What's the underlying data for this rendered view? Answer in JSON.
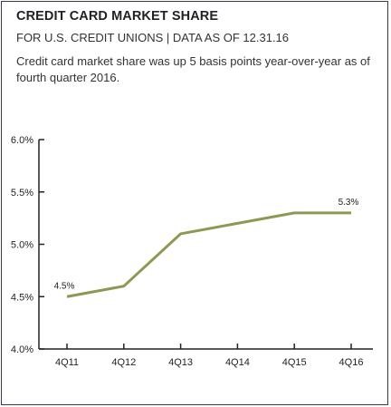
{
  "header": {
    "title": "CREDIT CARD MARKET SHARE",
    "subtitle": "FOR U.S. CREDIT UNIONS | DATA AS OF 12.31.16",
    "description": "Credit card market share was up 5 basis points year-over-year as of fourth quarter 2016."
  },
  "colors": {
    "line": "#8a9a52",
    "axis": "#222222",
    "frame": "#3a3a4a"
  },
  "chart_data": {
    "type": "line",
    "categories": [
      "4Q11",
      "4Q12",
      "4Q13",
      "4Q14",
      "4Q15",
      "4Q16"
    ],
    "series": [
      {
        "values": [
          4.5,
          4.6,
          5.1,
          5.2,
          5.3,
          5.3
        ]
      }
    ],
    "yticks": [
      "4.0%",
      "4.5%",
      "5.0%",
      "5.5%",
      "6.0%"
    ],
    "ylim": [
      4.0,
      6.0
    ],
    "data_labels": [
      {
        "index": 0,
        "text": "4.5%"
      },
      {
        "index": 5,
        "text": "5.3%"
      }
    ],
    "grid": false,
    "legend": "none"
  }
}
